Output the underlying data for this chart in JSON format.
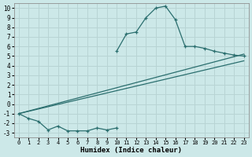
{
  "xlabel": "Humidex (Indice chaleur)",
  "background_color": "#cce8e8",
  "grid_color": "#b8d4d4",
  "line_color": "#2a6e6e",
  "xlim": [
    -0.5,
    23.5
  ],
  "ylim": [
    -3.5,
    10.5
  ],
  "xticks": [
    0,
    1,
    2,
    3,
    4,
    5,
    6,
    7,
    8,
    9,
    10,
    11,
    12,
    13,
    14,
    15,
    16,
    17,
    18,
    19,
    20,
    21,
    22,
    23
  ],
  "yticks": [
    -3,
    -2,
    -1,
    0,
    1,
    2,
    3,
    4,
    5,
    6,
    7,
    8,
    9,
    10
  ],
  "peak_x": [
    10,
    11,
    12,
    13,
    14,
    15,
    16,
    17,
    18,
    19,
    20,
    21,
    22,
    23
  ],
  "peak_y": [
    5.5,
    7.3,
    7.5,
    9.0,
    10.0,
    10.2,
    8.8,
    6.0,
    6.0,
    5.8,
    5.5,
    5.3,
    5.1,
    5.0
  ],
  "line1_x": [
    0,
    23
  ],
  "line1_y": [
    -1.0,
    5.2
  ],
  "line2_x": [
    0,
    23
  ],
  "line2_y": [
    -1.0,
    4.5
  ],
  "dip_x": [
    0,
    1,
    2,
    3,
    4,
    5,
    6,
    7,
    8,
    9,
    10
  ],
  "dip_y": [
    -1.0,
    -1.5,
    -1.8,
    -2.7,
    -2.3,
    -2.8,
    -2.8,
    -2.8,
    -2.5,
    -2.7,
    -2.5
  ]
}
